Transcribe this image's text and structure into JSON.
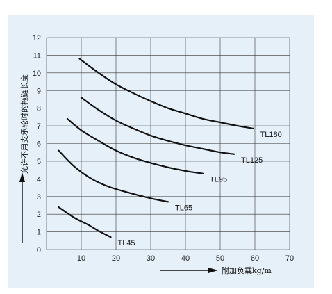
{
  "chart_data": {
    "type": "line",
    "xlabel": "附加负载kg/m",
    "ylabel": "允许不用支承轮时的拖链长度",
    "xlim": [
      0,
      70
    ],
    "ylim": [
      0,
      12
    ],
    "xticks": [
      10,
      20,
      30,
      40,
      50,
      60,
      70
    ],
    "yticks": [
      0,
      1,
      2,
      3,
      4,
      5,
      6,
      7,
      8,
      9,
      10,
      11,
      12
    ],
    "grid": true,
    "series": [
      {
        "name": "TL45",
        "x": [
          3.5,
          8,
          12,
          15,
          18.5
        ],
        "y": [
          2.4,
          1.8,
          1.4,
          1.05,
          0.7
        ]
      },
      {
        "name": "TL65",
        "x": [
          3.5,
          8,
          13,
          18,
          24,
          30,
          35
        ],
        "y": [
          5.6,
          4.7,
          4.0,
          3.55,
          3.2,
          2.9,
          2.7
        ]
      },
      {
        "name": "TL95",
        "x": [
          6,
          10,
          15,
          20,
          25,
          30,
          35,
          40,
          45
        ],
        "y": [
          7.4,
          6.75,
          6.15,
          5.6,
          5.2,
          4.9,
          4.65,
          4.45,
          4.3
        ]
      },
      {
        "name": "TL125",
        "x": [
          10,
          15,
          20,
          25,
          30,
          35,
          40,
          45,
          50,
          54
        ],
        "y": [
          8.6,
          7.9,
          7.3,
          6.85,
          6.45,
          6.15,
          5.9,
          5.7,
          5.5,
          5.4
        ]
      },
      {
        "name": "TL180",
        "x": [
          9.5,
          15,
          20,
          25,
          30,
          35,
          40,
          45,
          50,
          55,
          59.5
        ],
        "y": [
          10.8,
          10.0,
          9.35,
          8.85,
          8.4,
          8.0,
          7.7,
          7.4,
          7.2,
          7.0,
          6.85
        ]
      }
    ]
  }
}
